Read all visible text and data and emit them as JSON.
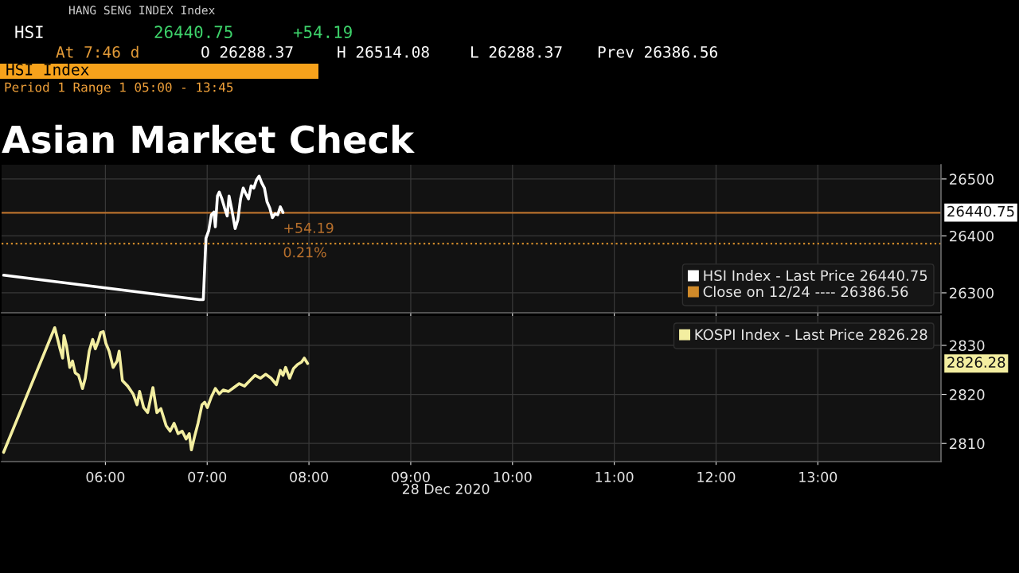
{
  "chart_data": [
    {
      "type": "line",
      "title": "Asian Market Check",
      "annotations": [
        "HANG SENG INDEX Index",
        "HSI",
        "26440.75",
        "+54.19",
        "At 7:46 d",
        "O 26288.37",
        "H 26514.08",
        "L 26288.37",
        "Prev 26386.56",
        "HSI Index",
        "Period 1 Range 1 05:00 - 13:45",
        "+54.19",
        "0.21%",
        "26440.75"
      ],
      "series": [
        {
          "name": "HSI Index - Last Price 26440.75",
          "color": "#ffffff",
          "x": [
            5.0,
            6.923,
            6.962,
            6.988,
            7.015,
            7.041,
            7.067,
            7.08,
            7.101,
            7.119,
            7.145,
            7.171,
            7.197,
            7.215,
            7.242,
            7.275,
            7.301,
            7.328,
            7.354,
            7.38,
            7.406,
            7.432,
            7.458,
            7.484,
            7.51,
            7.536,
            7.563,
            7.588,
            7.615,
            7.641,
            7.667,
            7.693,
            7.719,
            7.745
          ],
          "values": [
            26331,
            26288,
            26288,
            26396,
            26409,
            26437,
            26442,
            26416,
            26470,
            26477,
            26465,
            26449,
            26435,
            26470,
            26446,
            26413,
            26428,
            26465,
            26484,
            26474,
            26465,
            26488,
            26484,
            26498,
            26505,
            26493,
            26484,
            26460,
            26449,
            26432,
            26439,
            26437,
            26451,
            26441
          ]
        },
        {
          "name": "Close on 12/24 ---- 26386.56",
          "color": "#d08a2a",
          "line_style": "dotted",
          "x": [
            4.98,
            14.21
          ],
          "values": [
            26386.56,
            26386.56
          ]
        }
      ],
      "ref_lines": [
        {
          "axis": "y",
          "value": 26440.75,
          "color": "#b8702c",
          "line_style": "solid"
        }
      ],
      "xlim": [
        4.98,
        14.21
      ],
      "xticks": [
        {
          "value": 6,
          "label": null
        },
        {
          "value": 7,
          "label": null
        },
        {
          "value": 8,
          "label": null
        },
        {
          "value": 9,
          "label": null
        },
        {
          "value": 10,
          "label": null
        },
        {
          "value": 11,
          "label": null
        },
        {
          "value": 12,
          "label": null
        },
        {
          "value": 13,
          "label": null
        }
      ],
      "ylim": [
        26265,
        26525
      ],
      "yticks": [
        26300,
        26400,
        26500
      ],
      "tick_labels": "y",
      "grid": true,
      "legend": "bottom right"
    },
    {
      "type": "line",
      "xlabel": "28 Dec 2020",
      "annotations": [
        "2826.28"
      ],
      "series": [
        {
          "name": "KOSPI Index - Last Price 2826.28",
          "color": "#f3eea0",
          "x": [
            5.0,
            5.502,
            5.528,
            5.554,
            5.58,
            5.593,
            5.619,
            5.65,
            5.677,
            5.703,
            5.736,
            5.775,
            5.802,
            5.841,
            5.875,
            5.901,
            5.932,
            5.953,
            5.979,
            6.005,
            6.037,
            6.076,
            6.115,
            6.135,
            6.167,
            6.219,
            6.272,
            6.311,
            6.336,
            6.376,
            6.415,
            6.467,
            6.506,
            6.545,
            6.597,
            6.636,
            6.675,
            6.714,
            6.754,
            6.793,
            6.824,
            6.845,
            6.876,
            6.91,
            6.949,
            6.976,
            7.002,
            7.041,
            7.08,
            7.119,
            7.158,
            7.21,
            7.262,
            7.315,
            7.367,
            7.419,
            7.471,
            7.523,
            7.575,
            7.628,
            7.68,
            7.719,
            7.745,
            7.771,
            7.81,
            7.849,
            7.888,
            7.927,
            7.954,
            7.987
          ],
          "values": [
            2808.2,
            2833.6,
            2831.5,
            2829.3,
            2827.4,
            2832.0,
            2829.8,
            2825.5,
            2826.8,
            2824.4,
            2823.9,
            2821.2,
            2823.3,
            2828.8,
            2831.2,
            2829.3,
            2831.0,
            2832.6,
            2832.8,
            2830.4,
            2828.8,
            2825.5,
            2826.8,
            2828.8,
            2822.8,
            2821.7,
            2820.1,
            2817.9,
            2820.6,
            2817.3,
            2816.3,
            2821.4,
            2816.3,
            2817.1,
            2813.6,
            2812.5,
            2814.1,
            2812.0,
            2812.5,
            2810.9,
            2812.0,
            2808.7,
            2811.4,
            2814.1,
            2817.9,
            2818.4,
            2817.3,
            2819.5,
            2821.2,
            2820.1,
            2820.9,
            2820.6,
            2821.4,
            2822.2,
            2821.7,
            2822.8,
            2823.9,
            2823.3,
            2824.1,
            2823.3,
            2822.0,
            2824.9,
            2823.9,
            2825.5,
            2823.3,
            2825.3,
            2826.1,
            2826.6,
            2827.4,
            2826.3
          ]
        }
      ],
      "xlim": [
        4.98,
        14.21
      ],
      "xticks": [
        {
          "value": 6,
          "label": "06:00"
        },
        {
          "value": 7,
          "label": "07:00"
        },
        {
          "value": 8,
          "label": "08:00"
        },
        {
          "value": 9,
          "label": "09:00"
        },
        {
          "value": 10,
          "label": "10:00"
        },
        {
          "value": 11,
          "label": "11:00"
        },
        {
          "value": 12,
          "label": "12:00"
        },
        {
          "value": 13,
          "label": "13:00"
        }
      ],
      "ylim": [
        2806.3,
        2836.0
      ],
      "yticks": [
        2810,
        2820,
        2830
      ],
      "grid": true,
      "legend": "top right"
    }
  ]
}
